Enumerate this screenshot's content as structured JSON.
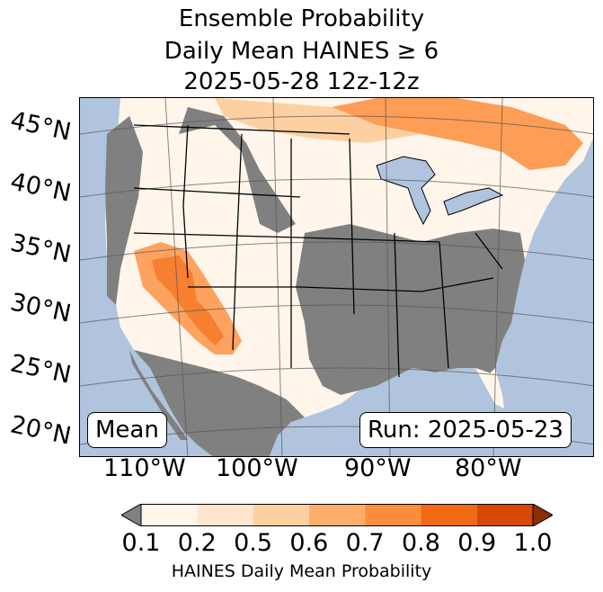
{
  "title": {
    "line1": "Ensemble Probability",
    "line2": "Daily Mean HAINES ≥ 6",
    "line3": "2025-05-28 12z-12z"
  },
  "labels": {
    "mean": "Mean",
    "run": "Run: 2025-05-23"
  },
  "lat_labels": [
    "45°N",
    "40°N",
    "35°N",
    "30°N",
    "25°N",
    "20°N"
  ],
  "lon_labels": [
    "110°W",
    "100°W",
    "90°W",
    "80°W"
  ],
  "colorbar": {
    "label": "HAINES Daily Mean Probability",
    "ticks": [
      "0.1",
      "0.2",
      "0.5",
      "0.6",
      "0.7",
      "0.8",
      "0.9",
      "1.0"
    ],
    "colors": [
      "#fff5eb",
      "#fee6ce",
      "#fdd0a2",
      "#fdae6b",
      "#fd8d3c",
      "#f16913",
      "#d94801"
    ],
    "under_color": "#808080",
    "over_color": "#8c2d04"
  },
  "map_colors": {
    "ocean": "#b0c4de",
    "land_low": "#fff5eb",
    "gray": "#808080"
  }
}
